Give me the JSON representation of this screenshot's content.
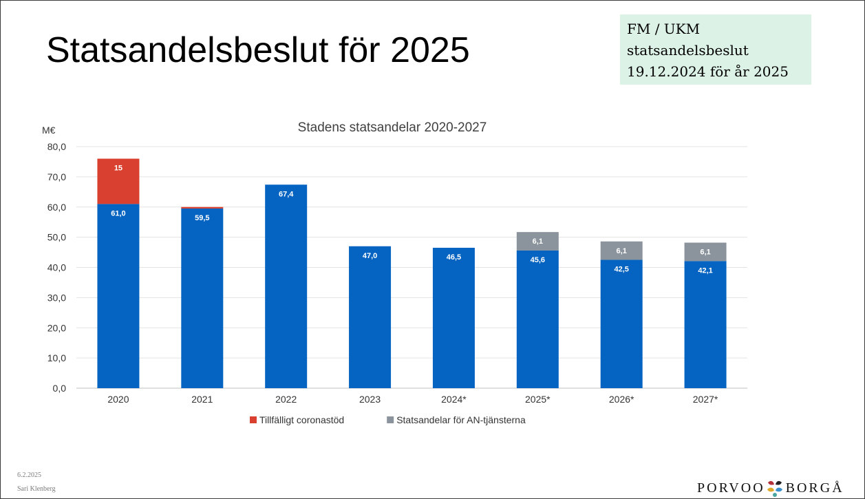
{
  "slide": {
    "title": "Statsandelsbeslut för 2025",
    "info_box": [
      "FM / UKM",
      "statsandelsbeslut",
      "19.12.2024 för år 2025"
    ],
    "footer_date": "6.2.2025",
    "footer_author": "Sari Klenberg",
    "logo_left": "PORVOO",
    "logo_right": "BORGÅ"
  },
  "chart_data": {
    "type": "bar",
    "stacked": true,
    "title": "Stadens statsandelar 2020-2027",
    "ylabel": "M€",
    "ylim": [
      0,
      80
    ],
    "yticks": [
      "0,0",
      "10,0",
      "20,0",
      "30,0",
      "40,0",
      "50,0",
      "60,0",
      "70,0",
      "80,0"
    ],
    "grid": true,
    "legend_position": "bottom",
    "categories": [
      "2020",
      "2021",
      "2022",
      "2023",
      "2024*",
      "2025*",
      "2026*",
      "2027*"
    ],
    "series": [
      {
        "values": [
          61.0,
          59.5,
          67.4,
          47.0,
          46.5,
          45.6,
          42.5,
          42.1
        ],
        "labels": [
          "61,0",
          "59,5",
          "67,4",
          "47,0",
          "46,5",
          "45,6",
          "42,5",
          "42,1"
        ],
        "color": "#0563c1"
      },
      {
        "name": "Tillfälligt coronastöd",
        "values": [
          15,
          0.5,
          0,
          0,
          0,
          0,
          0,
          0
        ],
        "labels": [
          "15",
          "",
          "",
          "",
          "",
          "",
          "",
          ""
        ],
        "color": "#d9402f"
      },
      {
        "name": "Statsandelar för AN-tjänsterna",
        "values": [
          0,
          0,
          0,
          0,
          0,
          6.1,
          6.1,
          6.1
        ],
        "labels": [
          "",
          "",
          "",
          "",
          "",
          "6,1",
          "6,1",
          "6,1"
        ],
        "color": "#8b949c"
      }
    ],
    "legend": [
      "Tillfälligt coronastöd",
      "Statsandelar för AN-tjänsterna"
    ]
  }
}
